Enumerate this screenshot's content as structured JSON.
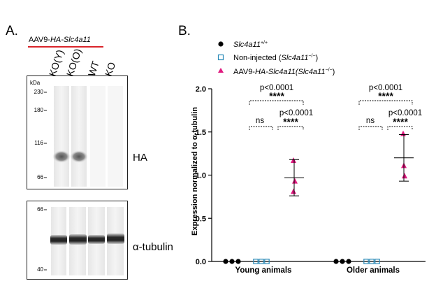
{
  "panel_a": {
    "letter": "A.",
    "construct_prefix": "AAV9-",
    "construct_italic": "HA-Slc4a11",
    "underline_color": "#d9242a",
    "lanes": [
      "KO(Y)",
      "KO(O)",
      "WT",
      "KO"
    ],
    "blot_top": {
      "unit_label": "kDa",
      "markers": [
        "230",
        "180",
        "116",
        "66"
      ],
      "label": "HA"
    },
    "blot_bottom": {
      "markers": [
        "66",
        "40"
      ],
      "label": "α-tubulin"
    }
  },
  "panel_b": {
    "letter": "B.",
    "legend": [
      {
        "text": "Slc4a11",
        "sup": "+/+",
        "suffix": "",
        "marker": "filled-circle",
        "color": "#000000"
      },
      {
        "text": "Non-injected (",
        "italic": "Slc4a11",
        "sup": "−/−",
        "suffix": ")",
        "marker": "open-square",
        "color": "#2a8ab8"
      },
      {
        "text": "AAV9-",
        "italic": "HA-Slc4a11",
        "paren": "(Slc4a11",
        "sup": "−/−",
        "suffix": ")",
        "marker": "filled-triangle",
        "color": "#e0197f"
      }
    ],
    "annotations": {
      "young_top_p": "p<0.0001",
      "young_top_stars": "****",
      "young_ns": "ns",
      "young_inner_p": "p<0.0001",
      "young_inner_stars": "****",
      "older_top_p": "p<0.0001",
      "older_top_stars": "****",
      "older_ns": "ns",
      "older_inner_p": "p<0.0001",
      "older_inner_stars": "****"
    }
  },
  "chart_data": {
    "type": "scatter",
    "ylabel": "Expression normalized to α-tubulin",
    "xlabel": "",
    "ylim": [
      0,
      2.0
    ],
    "yticks": [
      "0.0",
      "0.5",
      "1.0",
      "1.5",
      "2.0"
    ],
    "categories": [
      "Young animals",
      "Older animals"
    ],
    "series": [
      {
        "name": "Slc4a11+/+",
        "color": "#000000",
        "marker": "circle",
        "values": [
          [
            0,
            0,
            0
          ],
          [
            0,
            0,
            0
          ]
        ]
      },
      {
        "name": "Non-injected (Slc4a11-/-)",
        "color": "#2a8ab8",
        "marker": "square",
        "values": [
          [
            0,
            0,
            0
          ],
          [
            0,
            0,
            0
          ]
        ]
      },
      {
        "name": "AAV9-HA-Slc4a11 (Slc4a11-/-)",
        "color": "#e0197f",
        "marker": "triangle",
        "values": [
          [
            1.17,
            0.93,
            0.81
          ],
          [
            1.48,
            1.11,
            0.99
          ]
        ],
        "mean": [
          0.97,
          1.2
        ],
        "error_low": [
          0.76,
          0.93
        ],
        "error_high": [
          1.18,
          1.47
        ]
      }
    ]
  }
}
